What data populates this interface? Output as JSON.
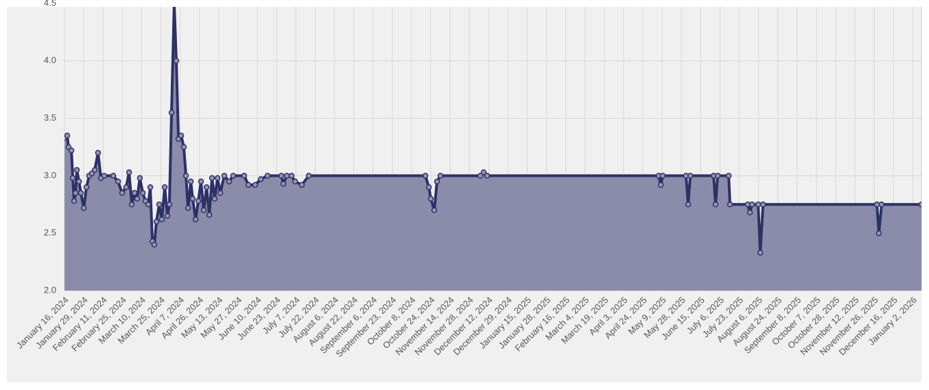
{
  "chart_data": {
    "type": "area",
    "categories": [
      "January 16, 2024",
      "January 29, 2024",
      "February 11, 2024",
      "February 25, 2024",
      "March 10, 2024",
      "March 25, 2024",
      "April 7, 2024",
      "April 26, 2024",
      "May 13, 2024",
      "May 27, 2024",
      "June 10, 2024",
      "June 23, 2024",
      "July 7, 2024",
      "July 22, 2024",
      "August 6, 2024",
      "August 22, 2024",
      "September 6, 2024",
      "September 23, 2024",
      "October 8, 2024",
      "October 24, 2024",
      "November 14, 2024",
      "November 28, 2024",
      "December 12, 2024",
      "December 29, 2024",
      "January 15, 2025",
      "January 28, 2025",
      "February 16, 2025",
      "March 4, 2025",
      "March 19, 2025",
      "April 3, 2025",
      "April 24, 2025",
      "May 9, 2025",
      "May 28, 2025",
      "June 15, 2025",
      "July 6, 2025",
      "July 23, 2025",
      "August 6, 2025",
      "August 24, 2025",
      "September 8, 2025",
      "October 7, 2025",
      "October 28, 2025",
      "November 12, 2025",
      "November 26, 2025",
      "December 16, 2025",
      "January 2, 2026"
    ],
    "x": [
      0,
      0.14,
      0.21,
      0.36,
      0.43,
      0.5,
      0.57,
      0.64,
      0.75,
      0.85,
      1.0,
      1.14,
      1.28,
      1.42,
      1.57,
      1.74,
      1.89,
      2.06,
      2.53,
      2.78,
      2.99,
      3.2,
      3.35,
      3.49,
      3.63,
      3.77,
      3.91,
      4.06,
      4.2,
      4.34,
      4.45,
      4.56,
      4.66,
      4.77,
      4.91,
      5.05,
      5.2,
      5.34,
      5.44,
      5.55,
      5.69,
      5.8,
      5.91,
      6.05,
      6.19,
      6.3,
      6.41,
      6.55,
      6.65,
      6.8,
      6.94,
      7.08,
      7.22,
      7.37,
      7.51,
      7.65,
      7.79,
      7.94,
      8.08,
      8.29,
      8.54,
      8.75,
      9.32,
      9.54,
      9.89,
      10.18,
      10.53,
      11.25,
      11.35,
      11.53,
      11.78,
      11.96,
      12.31,
      12.67,
      18.72,
      18.9,
      19.0,
      19.18,
      19.32,
      19.5,
      21.57,
      21.74,
      21.92,
      30.82,
      30.93,
      31.03,
      32.24,
      32.35,
      32.46,
      33.67,
      33.77,
      33.88,
      34.45,
      34.52,
      35.44,
      35.55,
      35.66,
      35.98,
      36.09,
      36.23,
      42.14,
      42.24,
      42.38,
      44.45
    ],
    "values": [
      3.33,
      3.35,
      3.25,
      3.22,
      2.98,
      2.78,
      2.85,
      3.05,
      2.95,
      2.85,
      2.72,
      2.9,
      3.0,
      3.02,
      3.05,
      3.2,
      2.98,
      3.0,
      3.0,
      2.95,
      2.85,
      2.9,
      3.03,
      2.75,
      2.85,
      2.8,
      2.98,
      2.85,
      2.78,
      2.75,
      2.9,
      2.43,
      2.4,
      2.6,
      2.75,
      2.62,
      2.9,
      2.65,
      2.75,
      3.55,
      4.5,
      4.0,
      3.32,
      3.35,
      3.25,
      3.0,
      2.72,
      2.95,
      2.8,
      2.62,
      2.78,
      2.95,
      2.7,
      2.9,
      2.66,
      2.98,
      2.8,
      2.98,
      2.85,
      3.0,
      2.95,
      3.0,
      3.0,
      2.92,
      2.92,
      2.97,
      3.0,
      3.0,
      2.93,
      3.0,
      3.0,
      2.95,
      2.92,
      3.0,
      3.0,
      2.9,
      2.8,
      2.7,
      2.95,
      3.0,
      3.0,
      3.03,
      3.0,
      3.0,
      2.92,
      3.0,
      3.0,
      2.75,
      3.0,
      3.0,
      2.75,
      3.0,
      3.0,
      2.75,
      2.75,
      2.68,
      2.75,
      2.75,
      2.33,
      2.75,
      2.75,
      2.5,
      2.75,
      2.75
    ],
    "line_color": "#2e3167",
    "fill_color": "#8a8ca9",
    "xlim": [
      0,
      44.45
    ],
    "ylim": [
      2,
      4.5
    ],
    "yticks": [
      {
        "value": 2,
        "label": "2.0"
      },
      {
        "value": 2.5,
        "label": "2.5"
      },
      {
        "value": 3,
        "label": "3.0"
      },
      {
        "value": 3.5,
        "label": "3.5"
      },
      {
        "value": 4,
        "label": "4.0"
      },
      {
        "value": 4.5,
        "label": "4.5"
      }
    ],
    "grid": true
  }
}
